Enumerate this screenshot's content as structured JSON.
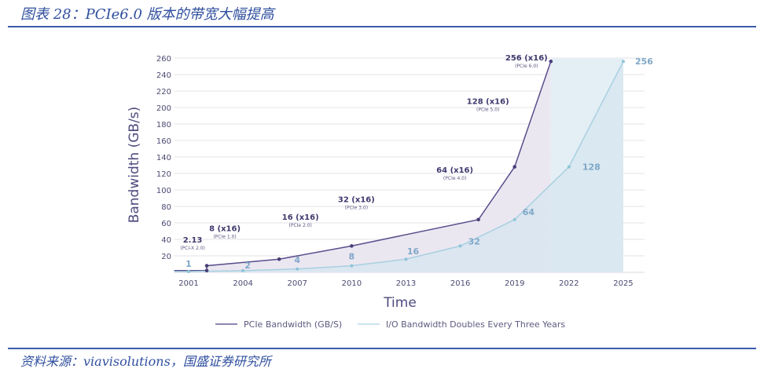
{
  "header": {
    "title": "图表 28：PCIe6.0 版本的带宽大幅提高"
  },
  "footer": {
    "source": "资料来源：viavisolutions，国盛证券研究所"
  },
  "chart_data": {
    "type": "area",
    "title": "",
    "xlabel": "Time",
    "ylabel": "Bandwidth (GB/s)",
    "xlim": [
      2000.2,
      2025.5
    ],
    "ylim": [
      0,
      260
    ],
    "x_ticks": [
      2001,
      2004,
      2007,
      2010,
      2013,
      2016,
      2019,
      2022,
      2025
    ],
    "y_ticks": [
      20,
      40,
      60,
      80,
      100,
      120,
      140,
      160,
      180,
      200,
      220,
      240,
      260
    ],
    "grid": true,
    "legend_position": "bottom",
    "series": [
      {
        "name": "PCIe Bandwidth (GB/S)",
        "color": "#5b4e8c",
        "fill": "#ebe7f1",
        "points": [
          {
            "x": 2000.2,
            "y": 2.13
          },
          {
            "x": 2002,
            "y": 2.13,
            "label": "2.13",
            "sub": "(PCI-X 2.0)"
          },
          {
            "x": 2002,
            "y": 8,
            "label": "8 (x16)",
            "sub": "(PCIe 1.0)"
          },
          {
            "x": 2006,
            "y": 16,
            "label": "16 (x16)",
            "sub": "(PCIe 2.0)"
          },
          {
            "x": 2010,
            "y": 32,
            "label": "32 (x16)",
            "sub": "(PCIe 3.0)"
          },
          {
            "x": 2017,
            "y": 64,
            "label": "64 (x16)",
            "sub": "(PCIe 4.0)"
          },
          {
            "x": 2019,
            "y": 128,
            "label": "128 (x16)",
            "sub": "(PCIe 5.0)"
          },
          {
            "x": 2021,
            "y": 256,
            "label": "256 (x16)",
            "sub": "(PCIe 6.0)"
          }
        ]
      },
      {
        "name": "I/O Bandwidth Doubles Every Three Years",
        "color": "#a8d0e0",
        "fill": "#d6e6ef",
        "points": [
          {
            "x": 2000.2,
            "y": 1
          },
          {
            "x": 2001,
            "y": 1,
            "label": "1"
          },
          {
            "x": 2004,
            "y": 2,
            "label": "2"
          },
          {
            "x": 2007,
            "y": 4,
            "label": "4"
          },
          {
            "x": 2010,
            "y": 8,
            "label": "8"
          },
          {
            "x": 2013,
            "y": 16,
            "label": "16"
          },
          {
            "x": 2016,
            "y": 32,
            "label": "32"
          },
          {
            "x": 2019,
            "y": 64,
            "label": "64"
          },
          {
            "x": 2022,
            "y": 128,
            "label": "128"
          },
          {
            "x": 2025,
            "y": 256,
            "label": "256"
          }
        ]
      }
    ]
  }
}
